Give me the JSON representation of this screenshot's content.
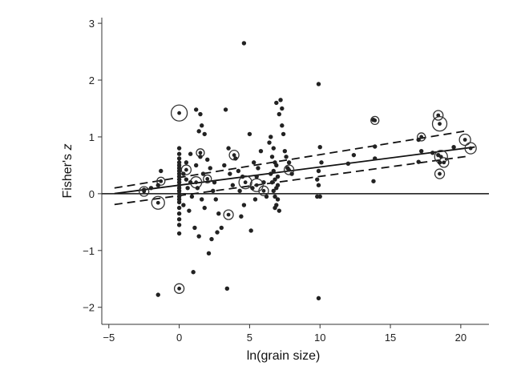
{
  "chart_data": {
    "type": "scatter",
    "xlabel": "ln(grain size)",
    "ylabel_main": "Fisher's ",
    "ylabel_italic": "z",
    "xlim": [
      -5.5,
      22
    ],
    "ylim": [
      -2.3,
      3.1
    ],
    "x_ticks": [
      -5,
      0,
      5,
      10,
      15,
      20
    ],
    "x_tick_labels": [
      "−5",
      "0",
      "5",
      "10",
      "15",
      "20"
    ],
    "y_ticks": [
      -2,
      -1,
      0,
      1,
      2,
      3
    ],
    "y_tick_labels": [
      "−2",
      "−1",
      "0",
      "1",
      "2",
      "3"
    ],
    "grid": false,
    "zero_line": {
      "y": 0
    },
    "fit_line": {
      "slope": 0.032,
      "intercept": 0.15
    },
    "confidence_band": {
      "lower": [
        [
          -4.6,
          -0.19
        ],
        [
          20.5,
          0.66
        ]
      ],
      "upper": [
        [
          -4.6,
          0.1
        ],
        [
          20.5,
          1.11
        ]
      ]
    },
    "points": [
      [
        -1.5,
        -1.78
      ],
      [
        -1.3,
        0.4
      ],
      [
        -1.5,
        0.15
      ],
      [
        -2.5,
        0.07
      ],
      [
        -2.0,
        0.1
      ],
      [
        0,
        0.8
      ],
      [
        0,
        0.7
      ],
      [
        0,
        0.62
      ],
      [
        0,
        0.55
      ],
      [
        0,
        0.5
      ],
      [
        0,
        0.45
      ],
      [
        0,
        0.4
      ],
      [
        0,
        0.35
      ],
      [
        0,
        0.3
      ],
      [
        0,
        0.25
      ],
      [
        0,
        0.2
      ],
      [
        0,
        0.15
      ],
      [
        0,
        0.1
      ],
      [
        0,
        0.05
      ],
      [
        0,
        0.0
      ],
      [
        0,
        -0.05
      ],
      [
        0,
        -0.1
      ],
      [
        0,
        -0.15
      ],
      [
        0,
        -0.25
      ],
      [
        0,
        -0.35
      ],
      [
        0,
        -0.45
      ],
      [
        0,
        -0.55
      ],
      [
        0,
        -0.7
      ],
      [
        0.3,
        0.35
      ],
      [
        0.5,
        0.25
      ],
      [
        0.8,
        0.2
      ],
      [
        0.6,
        0.1
      ],
      [
        0.9,
        -0.05
      ],
      [
        0.3,
        -0.2
      ],
      [
        0.7,
        -0.3
      ],
      [
        0.5,
        0.55
      ],
      [
        0.8,
        0.7
      ],
      [
        1.2,
        1.48
      ],
      [
        1.5,
        1.4
      ],
      [
        1.6,
        1.2
      ],
      [
        1.4,
        1.1
      ],
      [
        1.8,
        1.05
      ],
      [
        1.5,
        0.65
      ],
      [
        1.2,
        0.5
      ],
      [
        1.7,
        0.35
      ],
      [
        1.3,
        0.1
      ],
      [
        1.6,
        -0.1
      ],
      [
        1.8,
        -0.25
      ],
      [
        1.1,
        -0.6
      ],
      [
        1.4,
        -0.75
      ],
      [
        1.0,
        -1.38
      ],
      [
        2.1,
        -1.05
      ],
      [
        2.3,
        -0.8
      ],
      [
        2.0,
        0.6
      ],
      [
        2.2,
        0.45
      ],
      [
        2.5,
        0.2
      ],
      [
        2.4,
        0.05
      ],
      [
        2.6,
        -0.1
      ],
      [
        2.8,
        -0.35
      ],
      [
        3.0,
        -0.6
      ],
      [
        2.7,
        -0.68
      ],
      [
        3.3,
        1.48
      ],
      [
        3.5,
        0.8
      ],
      [
        3.2,
        0.5
      ],
      [
        3.6,
        0.35
      ],
      [
        3.8,
        0.15
      ],
      [
        3.4,
        -1.67
      ],
      [
        4.0,
        0.62
      ],
      [
        4.2,
        0.4
      ],
      [
        4.5,
        0.3
      ],
      [
        4.3,
        0.05
      ],
      [
        4.6,
        -0.2
      ],
      [
        4.4,
        -0.4
      ],
      [
        4.6,
        2.65
      ],
      [
        5.0,
        1.05
      ],
      [
        5.3,
        0.55
      ],
      [
        5.5,
        0.3
      ],
      [
        5.2,
        0.1
      ],
      [
        5.4,
        -0.1
      ],
      [
        5.1,
        -0.65
      ],
      [
        5.8,
        0.75
      ],
      [
        5.6,
        0.45
      ],
      [
        6.0,
        0.2
      ],
      [
        6.2,
        -0.05
      ],
      [
        6.5,
        1.0
      ],
      [
        6.4,
        0.9
      ],
      [
        6.7,
        0.8
      ],
      [
        6.6,
        0.65
      ],
      [
        6.8,
        0.55
      ],
      [
        6.9,
        0.5
      ],
      [
        6.7,
        0.4
      ],
      [
        6.5,
        0.35
      ],
      [
        7.0,
        0.3
      ],
      [
        6.8,
        0.25
      ],
      [
        6.6,
        0.2
      ],
      [
        7.0,
        0.15
      ],
      [
        6.9,
        0.1
      ],
      [
        6.7,
        0.05
      ],
      [
        6.8,
        -0.05
      ],
      [
        7.0,
        -0.1
      ],
      [
        6.9,
        -0.2
      ],
      [
        7.1,
        -0.3
      ],
      [
        6.8,
        -0.25
      ],
      [
        6.9,
        1.6
      ],
      [
        7.2,
        1.65
      ],
      [
        7.3,
        1.5
      ],
      [
        7.1,
        1.4
      ],
      [
        7.3,
        1.2
      ],
      [
        7.4,
        1.05
      ],
      [
        7.5,
        0.75
      ],
      [
        7.6,
        0.65
      ],
      [
        7.8,
        0.55
      ],
      [
        7.7,
        0.45
      ],
      [
        8.0,
        0.35
      ],
      [
        9.9,
        1.93
      ],
      [
        10.0,
        0.82
      ],
      [
        9.9,
        0.4
      ],
      [
        9.8,
        0.25
      ],
      [
        9.9,
        0.15
      ],
      [
        10.0,
        -0.05
      ],
      [
        9.8,
        -0.05
      ],
      [
        9.9,
        -1.84
      ],
      [
        10.1,
        0.55
      ],
      [
        12.0,
        0.53
      ],
      [
        12.4,
        0.68
      ],
      [
        13.8,
        1.3
      ],
      [
        13.9,
        0.83
      ],
      [
        13.9,
        0.62
      ],
      [
        13.8,
        0.22
      ],
      [
        17.0,
        0.95
      ],
      [
        17.2,
        0.75
      ],
      [
        17.0,
        0.56
      ],
      [
        18.0,
        0.72
      ],
      [
        18.4,
        0.68
      ],
      [
        18.5,
        0.55
      ],
      [
        19.5,
        0.82
      ]
    ],
    "circled_points": [
      [
        0,
        1.42,
        10
      ],
      [
        -1.5,
        -0.16,
        8
      ],
      [
        -2.5,
        0.04,
        6
      ],
      [
        -1.3,
        0.22,
        5
      ],
      [
        0.5,
        0.42,
        6
      ],
      [
        1.5,
        0.72,
        5
      ],
      [
        1.2,
        0.2,
        7
      ],
      [
        2.0,
        0.26,
        5
      ],
      [
        0,
        -1.67,
        6
      ],
      [
        3.5,
        -0.37,
        6
      ],
      [
        3.9,
        0.68,
        6
      ],
      [
        4.7,
        0.2,
        8
      ],
      [
        5.5,
        0.15,
        8
      ],
      [
        6.0,
        0.05,
        6
      ],
      [
        7.8,
        0.42,
        6
      ],
      [
        13.9,
        1.29,
        5
      ],
      [
        17.2,
        1.0,
        5
      ],
      [
        18.4,
        1.38,
        6
      ],
      [
        18.5,
        1.23,
        9
      ],
      [
        18.6,
        0.65,
        8
      ],
      [
        18.8,
        0.55,
        6
      ],
      [
        18.5,
        0.35,
        6
      ],
      [
        20.3,
        0.95,
        7
      ],
      [
        20.7,
        0.8,
        7
      ]
    ]
  }
}
